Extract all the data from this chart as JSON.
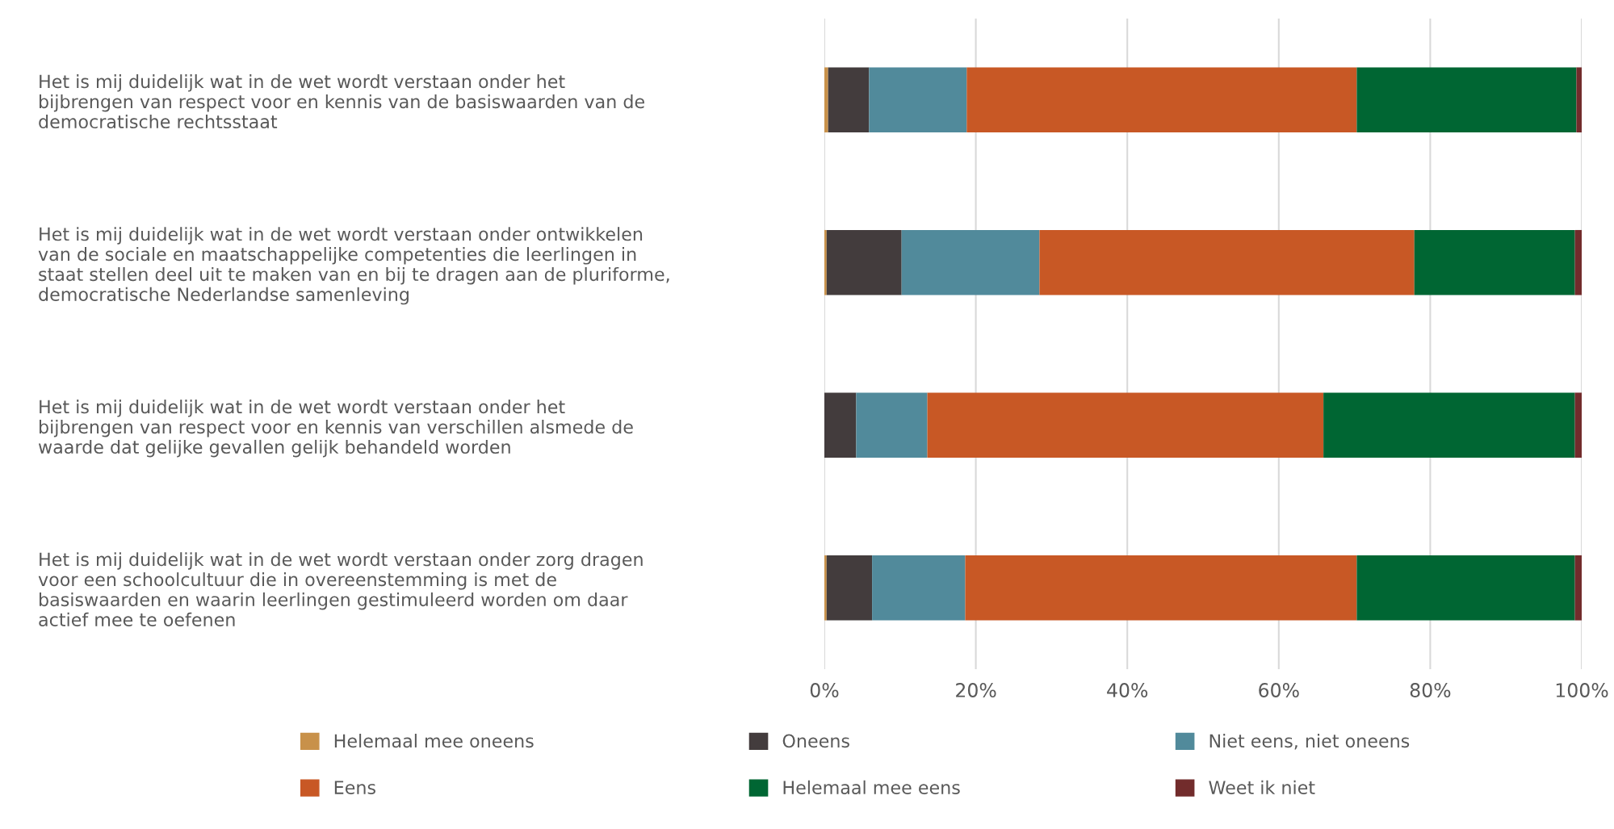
{
  "chart_data": {
    "type": "bar",
    "orientation": "horizontal",
    "stacked": true,
    "categories": [
      "Het is mij duidelijk wat in de wet wordt verstaan onder het\nbijbrengen van respect voor en kennis van de basiswaarden van de\ndemocratische rechtsstaat",
      "Het is mij duidelijk wat in de wet wordt verstaan onder ontwikkelen\nvan de sociale en maatschappelijke competenties die leerlingen in\nstaat stellen deel uit te maken van en bij te dragen aan de pluriforme,\ndemocratische Nederlandse samenleving",
      "Het is mij duidelijk wat in de wet wordt verstaan onder het\nbijbrengen van respect voor en kennis van verschillen alsmede de\nwaarde dat gelijke gevallen gelijk behandeld worden",
      "Het is mij duidelijk wat in de wet wordt verstaan onder zorg dragen\nvoor een schoolcultuur die in overeenstemming is met de\nbasiswaarden en waarin leerlingen gestimuleerd worden om daar\nactief mee te oefenen"
    ],
    "series": [
      {
        "name": "Helemaal mee oneens",
        "color": "#c8914a",
        "values": [
          0.5,
          0.3,
          0,
          0.3
        ]
      },
      {
        "name": "Oneens",
        "color": "#433c3d",
        "values": [
          5.4,
          9.9,
          4.2,
          6.0
        ]
      },
      {
        "name": "Niet eens, niet oneens",
        "color": "#518a9b",
        "values": [
          12.9,
          18.2,
          9.4,
          12.3
        ]
      },
      {
        "name": "Eens",
        "color": "#c85825",
        "values": [
          51.5,
          49.5,
          52.3,
          51.7
        ]
      },
      {
        "name": "Helemaal mee eens",
        "color": "#006633",
        "values": [
          29.0,
          21.2,
          33.2,
          28.8
        ]
      },
      {
        "name": "Weet ik niet",
        "color": "#722c2c",
        "values": [
          0.7,
          0.9,
          0.9,
          0.9
        ]
      }
    ],
    "xlim": [
      0,
      100
    ],
    "xticks": [
      {
        "value": 0,
        "label": "0%"
      },
      {
        "value": 20,
        "label": "20%"
      },
      {
        "value": 40,
        "label": "40%"
      },
      {
        "value": 60,
        "label": "60%"
      },
      {
        "value": 80,
        "label": "80%"
      },
      {
        "value": 100,
        "label": "100%"
      }
    ],
    "grid": "x",
    "legend": "bottom"
  }
}
